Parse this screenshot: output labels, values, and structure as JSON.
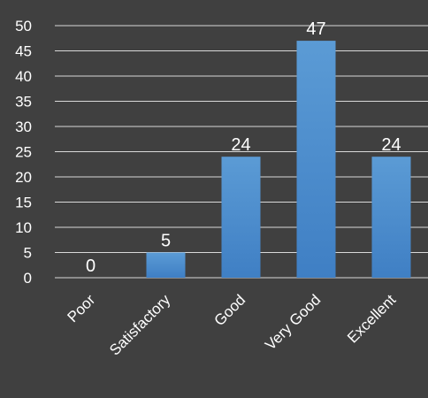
{
  "chart_data": {
    "type": "bar",
    "categories": [
      "Poor",
      "Satisfactory",
      "Good",
      "Very Good",
      "Excellent"
    ],
    "values": [
      0,
      5,
      24,
      47,
      24
    ],
    "data_labels": [
      "0",
      "5",
      "24",
      "47",
      "24"
    ],
    "title": "",
    "xlabel": "",
    "ylabel": "",
    "ylim": [
      0,
      50
    ],
    "y_ticks": [
      "0",
      "5",
      "10",
      "15",
      "20",
      "25",
      "30",
      "35",
      "40",
      "45",
      "50"
    ],
    "grid": true,
    "legend": "none",
    "colors": {
      "background": "#404040",
      "bar_top": "#5b9bd5",
      "bar_bottom": "#3f7fc4",
      "grid": "#d9d9d9",
      "text": "#ffffff"
    }
  }
}
